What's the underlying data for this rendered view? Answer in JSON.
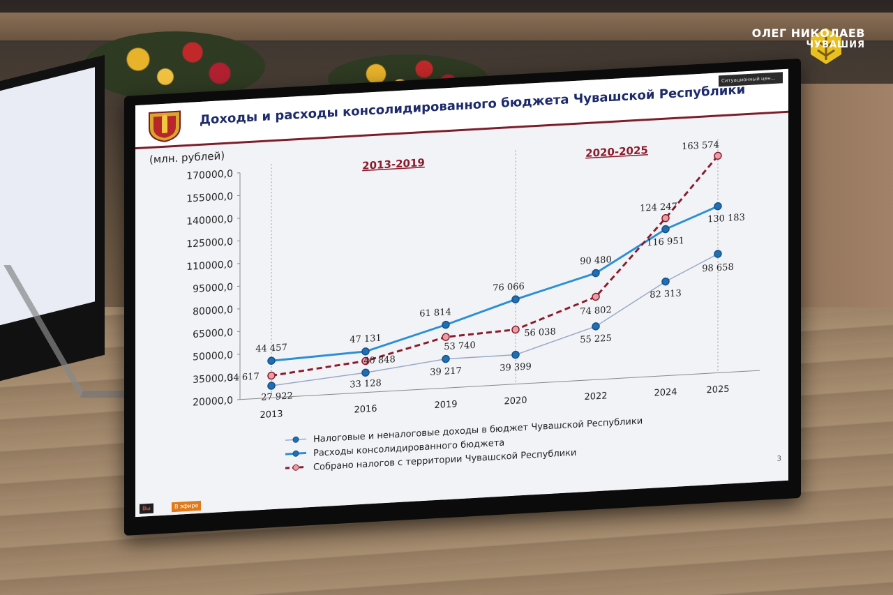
{
  "watermark": {
    "name": "ОЛЕГ НИКОЛАЕВ",
    "region": "ЧУВАШИЯ"
  },
  "slide": {
    "title": "Доходы и расходы консолидированного бюджета Чувашской Республики",
    "unit_label": "(млн. рублей)",
    "period_1": "2013-2019",
    "period_2": "2020-2025",
    "page_number": "3",
    "top_right_badge": "Ситуационный цен...",
    "footer_channel": "Вы",
    "footer_live": "В эфире"
  },
  "chart_data": {
    "type": "line",
    "x": [
      "2013",
      "2016",
      "2019",
      "2020",
      "2022",
      "2024",
      "2025"
    ],
    "y_ticks": [
      "20000,0",
      "35000,0",
      "50000,0",
      "65000,0",
      "80000,0",
      "95000,0",
      "110000,0",
      "125000,0",
      "140000,0",
      "155000,0",
      "170000,0"
    ],
    "ylim": [
      20000,
      170000
    ],
    "series": [
      {
        "name": "Налоговые и неналоговые доходы в бюджет Чувашской Республики",
        "color": "#9aa8c8",
        "marker_color": "#1f6fb5",
        "style": "solid-thin",
        "values": [
          27922,
          33128,
          39217,
          39399,
          55225,
          82313,
          98658
        ],
        "labels": [
          "27 922",
          "33 128",
          "39 217",
          "39 399",
          "55 225",
          "82 313",
          "98 658"
        ]
      },
      {
        "name": "Расходы консолидированного бюджета",
        "color": "#2b8fd6",
        "marker_color": "#1f6fb5",
        "style": "solid",
        "values": [
          44457,
          47131,
          61814,
          76066,
          90480,
          116951,
          130183
        ],
        "labels": [
          "44 457",
          "47 131",
          "61 814",
          "76 066",
          "90 480",
          "116 951",
          "130 183"
        ]
      },
      {
        "name": "Собрано налогов с территории Чувашской Республики",
        "color": "#8b1a2b",
        "marker_color": "#e8a0a8",
        "style": "dashed",
        "values": [
          34617,
          40848,
          53740,
          56038,
          74802,
          124247,
          163574
        ],
        "labels": [
          "34 617",
          "40 848",
          "53 740",
          "56 038",
          "74 802",
          "124 247",
          "163 574"
        ]
      }
    ],
    "legend_placement": "bottom",
    "grid": false
  }
}
